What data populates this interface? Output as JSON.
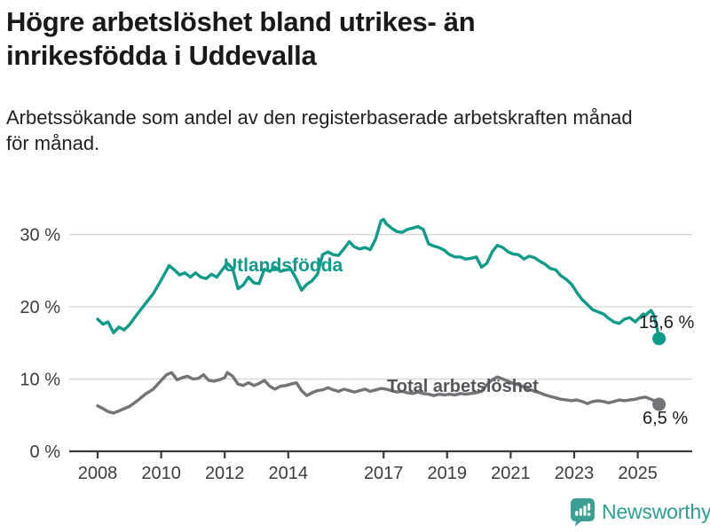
{
  "header": {
    "title_lines": [
      "Högre arbetslöshet bland utrikes- än",
      "inrikesfödda i Uddevalla"
    ],
    "subtitle_lines": [
      "Arbetssökande som andel av den registerbaserade arbetskraften månad",
      "för månad."
    ]
  },
  "chart_data": {
    "type": "line",
    "title": "Högre arbetslöshet bland utrikes- än inrikesfödda i Uddevalla",
    "subtitle": "Arbetssökande som andel av den registerbaserade arbetskraften månad för månad.",
    "x_unit": "decimal_year",
    "xlim": [
      2007.1,
      2026.7
    ],
    "ylim": [
      0,
      33
    ],
    "grid_y": [
      10,
      20,
      30
    ],
    "y_ticks": [
      {
        "value": 0,
        "label": "0 %"
      },
      {
        "value": 10,
        "label": "10 %"
      },
      {
        "value": 20,
        "label": "20 %"
      },
      {
        "value": 30,
        "label": "30 %"
      }
    ],
    "x_ticks": [
      2008,
      2010,
      2012,
      2014,
      2017,
      2019,
      2021,
      2023,
      2025
    ],
    "legend_position": "inline-labels",
    "grid": true,
    "colors": {
      "utlandsfodda": "#0E9B8A",
      "total": "#737378",
      "axis": "#3A3A3A",
      "gridline": "#D8D8D8",
      "tick_text": "#3C3C3C"
    },
    "series": [
      {
        "name": "Utlandsfödda",
        "color": "#0E9B8A",
        "end_label": "15,6 %",
        "end_value": 15.6,
        "x": [
          2008.0,
          2008.17,
          2008.33,
          2008.5,
          2008.67,
          2008.83,
          2009.0,
          2009.25,
          2009.5,
          2009.75,
          2010.0,
          2010.25,
          2010.42,
          2010.58,
          2010.75,
          2010.92,
          2011.08,
          2011.25,
          2011.42,
          2011.58,
          2011.75,
          2011.92,
          2012.08,
          2012.25,
          2012.42,
          2012.58,
          2012.75,
          2012.92,
          2013.08,
          2013.25,
          2013.42,
          2013.58,
          2013.75,
          2013.92,
          2014.08,
          2014.25,
          2014.42,
          2014.58,
          2014.75,
          2014.92,
          2015.08,
          2015.25,
          2015.42,
          2015.58,
          2015.75,
          2015.92,
          2016.08,
          2016.25,
          2016.42,
          2016.58,
          2016.75,
          2016.92,
          2017.0,
          2017.08,
          2017.25,
          2017.42,
          2017.58,
          2017.75,
          2017.92,
          2018.08,
          2018.25,
          2018.42,
          2018.58,
          2018.75,
          2018.92,
          2019.08,
          2019.25,
          2019.42,
          2019.58,
          2019.75,
          2019.92,
          2020.08,
          2020.25,
          2020.42,
          2020.58,
          2020.75,
          2020.92,
          2021.08,
          2021.25,
          2021.42,
          2021.58,
          2021.75,
          2021.92,
          2022.08,
          2022.25,
          2022.42,
          2022.58,
          2022.75,
          2022.92,
          2023.08,
          2023.25,
          2023.42,
          2023.58,
          2023.75,
          2023.92,
          2024.08,
          2024.25,
          2024.42,
          2024.58,
          2024.75,
          2024.92,
          2025.08,
          2025.17,
          2025.25,
          2025.33,
          2025.42,
          2025.5,
          2025.58,
          2025.67
        ],
        "values": [
          18.3,
          17.6,
          17.9,
          16.4,
          17.2,
          16.8,
          17.5,
          19.0,
          20.4,
          21.8,
          23.7,
          25.7,
          25.1,
          24.4,
          24.7,
          24.1,
          24.7,
          24.1,
          23.9,
          24.5,
          24.1,
          25.1,
          26.0,
          25.3,
          22.5,
          23.0,
          24.1,
          23.3,
          23.2,
          25.2,
          24.9,
          25.5,
          24.9,
          25.1,
          25.2,
          23.9,
          22.3,
          23.1,
          23.6,
          24.5,
          27.2,
          27.6,
          27.2,
          27.1,
          28.0,
          29.0,
          28.3,
          28.0,
          28.2,
          27.9,
          29.4,
          31.9,
          32.1,
          31.5,
          30.9,
          30.4,
          30.3,
          30.7,
          30.9,
          31.1,
          30.7,
          28.7,
          28.4,
          28.2,
          27.8,
          27.2,
          26.9,
          26.9,
          26.6,
          26.7,
          26.9,
          25.5,
          26.0,
          27.6,
          28.5,
          28.2,
          27.6,
          27.3,
          27.2,
          26.6,
          27.0,
          26.8,
          26.3,
          25.9,
          25.3,
          25.1,
          24.3,
          23.8,
          23.1,
          22.0,
          21.0,
          20.3,
          19.6,
          19.3,
          19.0,
          18.4,
          17.9,
          17.7,
          18.3,
          18.5,
          17.9,
          18.6,
          19.0,
          18.8,
          19.2,
          19.5,
          18.9,
          17.6,
          15.6
        ]
      },
      {
        "name": "Total arbetslöshet",
        "color": "#737378",
        "end_label": "6,5 %",
        "end_value": 6.5,
        "x": [
          2008.0,
          2008.17,
          2008.33,
          2008.5,
          2008.67,
          2008.83,
          2009.0,
          2009.25,
          2009.5,
          2009.75,
          2010.0,
          2010.17,
          2010.33,
          2010.5,
          2010.67,
          2010.83,
          2011.0,
          2011.17,
          2011.33,
          2011.5,
          2011.67,
          2011.83,
          2012.0,
          2012.08,
          2012.25,
          2012.42,
          2012.58,
          2012.75,
          2012.92,
          2013.08,
          2013.25,
          2013.42,
          2013.58,
          2013.75,
          2013.92,
          2014.08,
          2014.25,
          2014.42,
          2014.58,
          2014.75,
          2014.92,
          2015.08,
          2015.25,
          2015.42,
          2015.58,
          2015.75,
          2015.92,
          2016.08,
          2016.25,
          2016.42,
          2016.58,
          2016.75,
          2016.92,
          2017.08,
          2017.25,
          2017.42,
          2017.58,
          2017.75,
          2017.92,
          2018.08,
          2018.25,
          2018.42,
          2018.58,
          2018.75,
          2018.92,
          2019.08,
          2019.25,
          2019.42,
          2019.58,
          2019.75,
          2019.92,
          2020.08,
          2020.25,
          2020.42,
          2020.58,
          2020.75,
          2020.92,
          2021.08,
          2021.25,
          2021.42,
          2021.58,
          2021.75,
          2021.92,
          2022.08,
          2022.25,
          2022.42,
          2022.58,
          2022.75,
          2022.92,
          2023.08,
          2023.25,
          2023.42,
          2023.58,
          2023.75,
          2023.92,
          2024.08,
          2024.25,
          2024.42,
          2024.58,
          2024.75,
          2024.92,
          2025.08,
          2025.25,
          2025.42,
          2025.58,
          2025.67
        ],
        "values": [
          6.3,
          5.9,
          5.5,
          5.3,
          5.6,
          5.9,
          6.2,
          7.0,
          7.9,
          8.6,
          9.8,
          10.6,
          10.9,
          9.9,
          10.2,
          10.4,
          10.0,
          10.1,
          10.6,
          9.8,
          9.7,
          9.9,
          10.2,
          10.9,
          10.4,
          9.3,
          9.1,
          9.5,
          9.1,
          9.4,
          9.8,
          9.0,
          8.6,
          9.0,
          9.1,
          9.3,
          9.5,
          8.4,
          7.7,
          8.1,
          8.4,
          8.5,
          8.8,
          8.5,
          8.3,
          8.6,
          8.4,
          8.2,
          8.4,
          8.6,
          8.3,
          8.5,
          8.7,
          8.6,
          8.4,
          8.2,
          8.3,
          8.1,
          8.0,
          8.2,
          8.0,
          7.9,
          7.7,
          7.9,
          7.8,
          7.9,
          7.8,
          8.0,
          7.9,
          8.0,
          8.1,
          8.3,
          9.2,
          9.9,
          10.3,
          10.0,
          9.7,
          9.4,
          9.2,
          8.9,
          8.6,
          8.3,
          8.1,
          7.8,
          7.6,
          7.4,
          7.2,
          7.1,
          7.0,
          7.1,
          6.9,
          6.6,
          6.9,
          7.0,
          6.9,
          6.7,
          6.9,
          7.1,
          7.0,
          7.1,
          7.2,
          7.4,
          7.5,
          7.2,
          6.9,
          6.5
        ]
      }
    ]
  },
  "footer": {
    "brand": "Newsworthy",
    "brand_color": "#2F9D91",
    "logo_fill": "#3BA093"
  }
}
